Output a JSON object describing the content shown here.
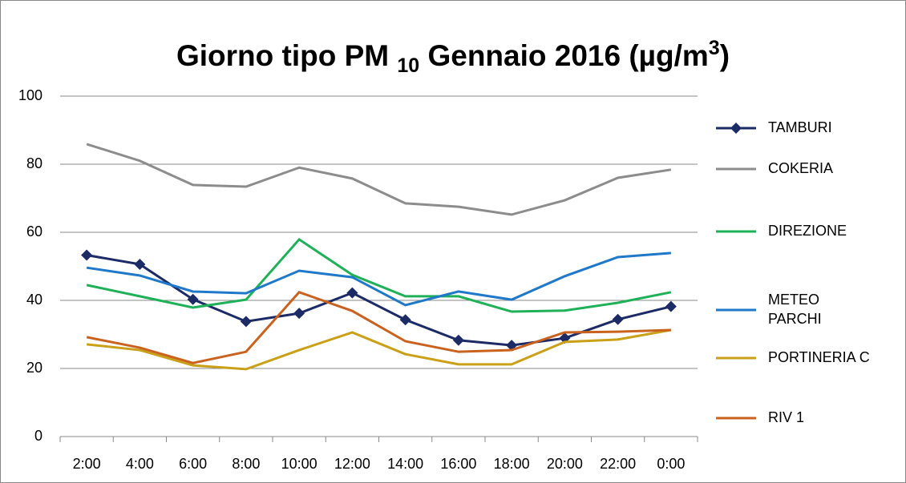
{
  "chart_data": {
    "type": "line",
    "title_parts": [
      "Giorno tipo PM ",
      "10",
      " Gennaio 2016 (µg/m",
      "3",
      ")"
    ],
    "categories": [
      "2:00",
      "4:00",
      "6:00",
      "8:00",
      "10:00",
      "12:00",
      "14:00",
      "16:00",
      "18:00",
      "20:00",
      "22:00",
      "0:00"
    ],
    "series": [
      {
        "name": "TAMBURI",
        "color": "#1c2b66",
        "marker": "diamond",
        "values": [
          53.3,
          50.6,
          40.3,
          33.8,
          36.2,
          42.2,
          34.3,
          28.3,
          26.8,
          28.9,
          34.4,
          38.2
        ]
      },
      {
        "name": "COKERIA",
        "color": "#8c8c8c",
        "values": [
          85.9,
          81,
          73.9,
          73.4,
          79,
          75.8,
          68.5,
          67.5,
          65.2,
          69.4,
          76,
          78.4
        ]
      },
      {
        "name": "DIREZIONE",
        "color": "#1fb058",
        "values": [
          44.5,
          41.2,
          37.9,
          40.2,
          57.9,
          47.5,
          41.2,
          41.2,
          36.7,
          37,
          39.3,
          42.4
        ]
      },
      {
        "name": "METEO PARCHI",
        "color": "#1f78c8",
        "values": [
          49.6,
          47.3,
          42.6,
          42.1,
          48.7,
          46.8,
          38.6,
          42.6,
          40.2,
          47.1,
          52.7,
          53.9
        ]
      },
      {
        "name": "PORTINERIA C",
        "color": "#c9a018",
        "values": [
          27.1,
          25.4,
          20.9,
          19.8,
          25.4,
          30.6,
          24.2,
          21.2,
          21.2,
          27.8,
          28.5,
          31.3
        ]
      },
      {
        "name": "RIV 1",
        "color": "#c8621e",
        "values": [
          29.2,
          26.1,
          21.6,
          24.9,
          42.4,
          36.9,
          28,
          24.9,
          25.4,
          30.6,
          30.8,
          31.3
        ]
      }
    ],
    "ylim": [
      0,
      100
    ],
    "yticks": [
      0,
      20,
      40,
      60,
      80,
      100
    ],
    "grid": true,
    "legend": "right"
  }
}
